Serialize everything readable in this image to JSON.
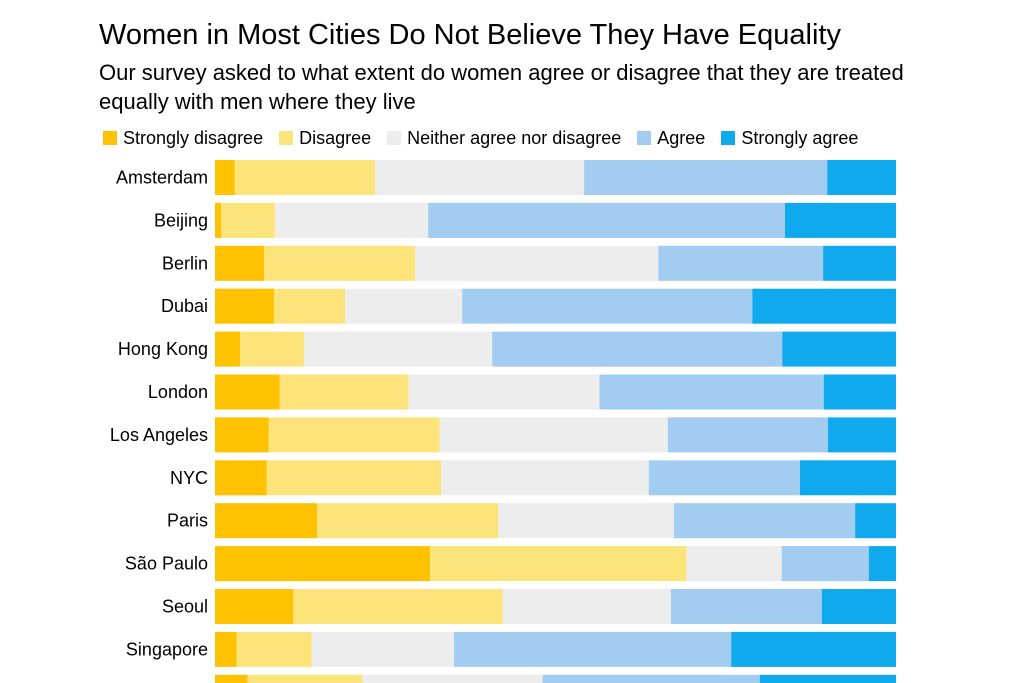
{
  "chart_data": {
    "type": "bar",
    "orientation": "horizontal",
    "stacked": true,
    "normalized": true,
    "title": "Women in Most Cities Do Not Believe They Have Equality",
    "subtitle": "Our survey asked to what extent do women agree or disagree that they are treated equally with men where they live",
    "legend_position": "top",
    "grid": false,
    "xlim": [
      0,
      100
    ],
    "categories": [
      "Amsterdam",
      "Beijing",
      "Berlin",
      "Dubai",
      "Hong Kong",
      "London",
      "Los Angeles",
      "NYC",
      "Paris",
      "São Paulo",
      "Seoul",
      "Singapore",
      ""
    ],
    "series": [
      {
        "name": "Strongly disagree",
        "color": "#FEC200",
        "values": [
          2.9,
          0.9,
          7.2,
          8.7,
          3.7,
          9.5,
          7.9,
          7.6,
          15.0,
          31.6,
          11.5,
          3.2,
          4.8
        ]
      },
      {
        "name": "Disagree",
        "color": "#FCE37A",
        "values": [
          20.6,
          7.9,
          22.2,
          10.4,
          9.4,
          18.9,
          25.1,
          25.6,
          26.6,
          37.7,
          30.8,
          11.0,
          16.9
        ]
      },
      {
        "name": "Neither agree nor disagree",
        "color": "#EDEDED",
        "values": [
          30.7,
          22.5,
          35.7,
          17.2,
          27.6,
          28.0,
          33.5,
          30.5,
          25.8,
          14.0,
          24.7,
          20.9,
          26.4
        ]
      },
      {
        "name": "Agree",
        "color": "#A2CCF0",
        "values": [
          35.7,
          52.4,
          24.2,
          42.6,
          42.6,
          32.9,
          23.5,
          22.2,
          26.6,
          12.8,
          22.2,
          40.7,
          31.9
        ]
      },
      {
        "name": "Strongly agree",
        "color": "#11A9EE",
        "values": [
          10.1,
          16.3,
          10.7,
          21.1,
          16.7,
          10.6,
          10.0,
          14.1,
          6.0,
          4.0,
          10.9,
          24.2,
          20.0
        ]
      }
    ]
  }
}
